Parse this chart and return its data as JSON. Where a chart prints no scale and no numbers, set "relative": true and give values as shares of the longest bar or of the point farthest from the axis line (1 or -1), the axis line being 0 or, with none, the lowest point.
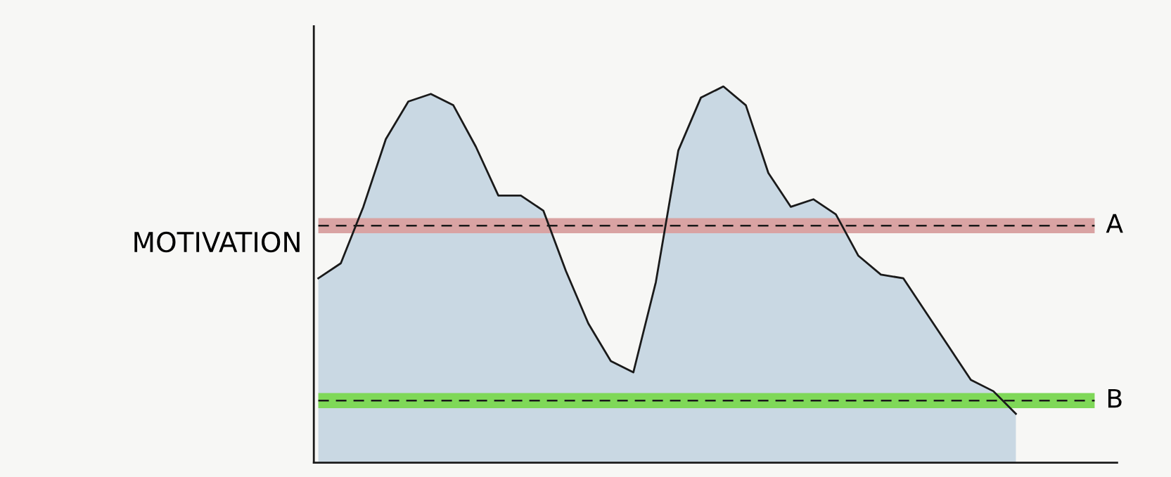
{
  "chart_data": {
    "type": "area",
    "relative": true,
    "ylabel": "MOTIVATION",
    "categories": [
      null,
      null,
      null,
      null,
      null,
      null,
      null,
      null,
      null,
      null,
      null,
      null,
      null,
      null,
      null,
      null,
      null,
      null,
      null,
      null,
      null,
      null,
      null,
      null,
      null,
      null,
      null,
      null,
      null,
      null,
      null,
      null
    ],
    "series": [
      {
        "color": "#c9d8e3",
        "values": [
          0.49,
          0.53,
          0.68,
          0.86,
          0.96,
          0.98,
          0.95,
          0.84,
          0.71,
          0.71,
          0.67,
          0.51,
          0.37,
          0.27,
          0.24,
          0.48,
          0.83,
          0.97,
          1.0,
          0.95,
          0.77,
          0.68,
          0.7,
          0.66,
          0.55,
          0.5,
          0.49,
          0.4,
          0.31,
          0.22,
          0.19,
          0.13
        ]
      }
    ],
    "ref_lines": [
      {
        "axis": "y",
        "value": 0.63,
        "label": "A",
        "color": "#1a1a1a",
        "line_style": "dashed"
      },
      {
        "axis": "y",
        "value": 0.165,
        "label": "B",
        "color": "#1a1a1a",
        "line_style": "dashed"
      }
    ],
    "bands": [
      {
        "axis": "y",
        "from": 0.61,
        "to": 0.65,
        "color": "#d9a3a3"
      },
      {
        "axis": "y",
        "from": 0.145,
        "to": 0.185,
        "color": "#7fd858"
      }
    ],
    "legend": false
  }
}
